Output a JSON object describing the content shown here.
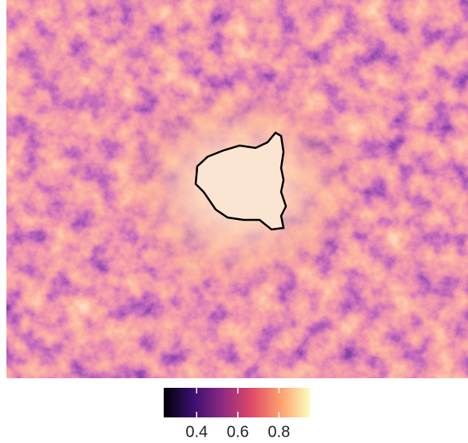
{
  "colorbar": {
    "range": [
      0.24,
      0.95
    ],
    "ticks": [
      0.4,
      0.6,
      0.8
    ],
    "colors": [
      "#000004",
      "#3b0f70",
      "#8c2981",
      "#de4968",
      "#fe9f6d",
      "#fcfdbf"
    ]
  }
}
